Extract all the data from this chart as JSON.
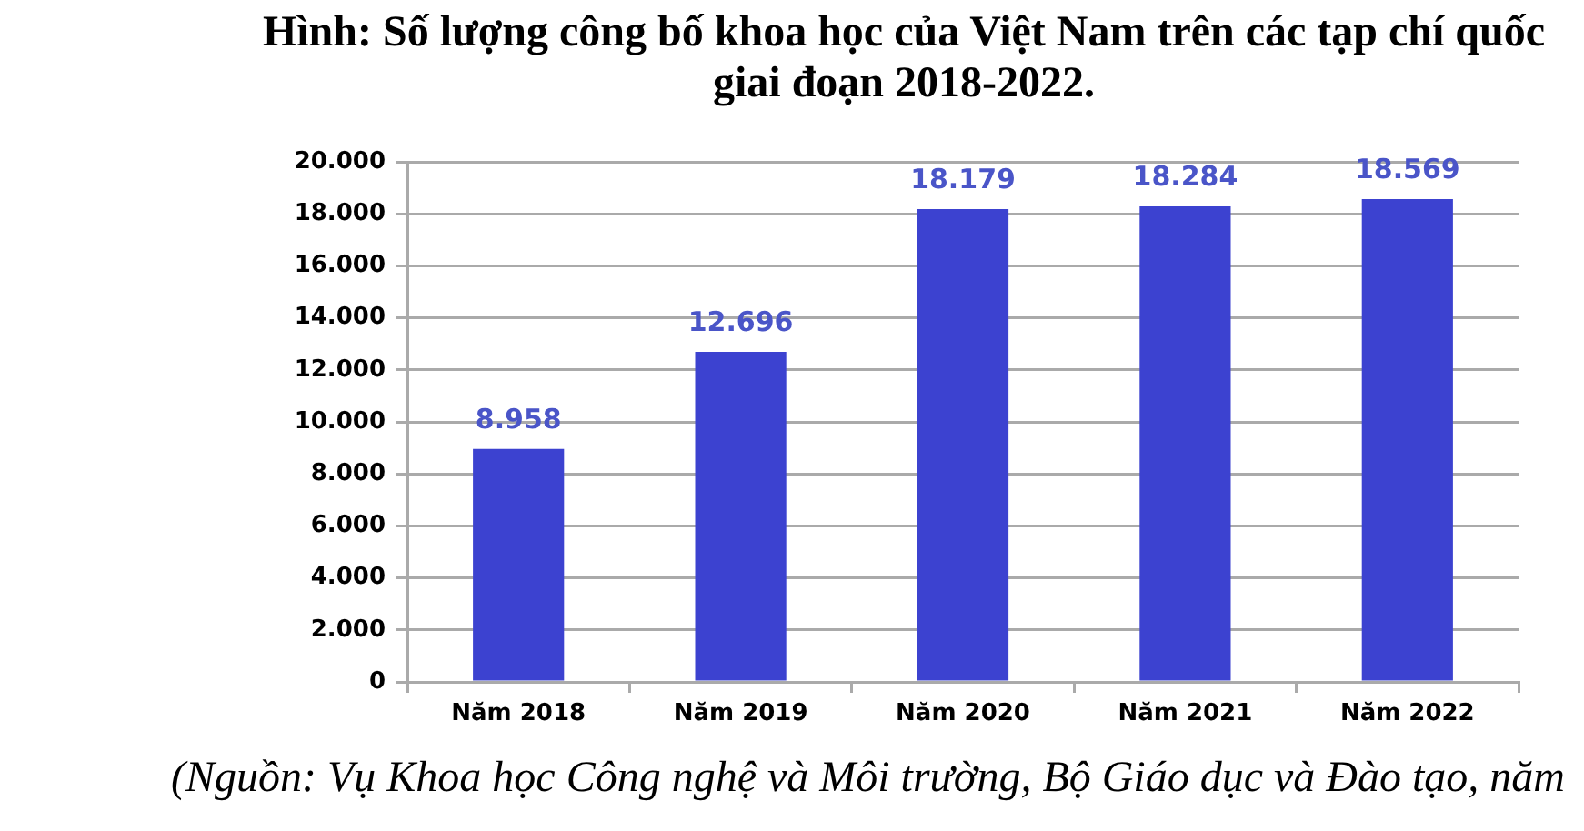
{
  "chart_data": {
    "type": "bar",
    "title": "Hình: Số lượng công bố khoa học của Việt Nam trên các tạp chí quốc giai đoạn 2018-2022.",
    "categories": [
      "Năm 2018",
      "Năm 2019",
      "Năm 2020",
      "Năm 2021",
      "Năm 2022"
    ],
    "values": [
      8958,
      12696,
      18179,
      18284,
      18569
    ],
    "value_labels": [
      "8.958",
      "12.696",
      "18.179",
      "18.284",
      "18.569"
    ],
    "color": "#3c42d0",
    "ylim": [
      0,
      20000
    ],
    "yticks": [
      0,
      {
        "value": 2000,
        "label": "2.000"
      },
      {
        "value": 4000,
        "label": "4.000"
      },
      {
        "value": 6000,
        "label": "6.000"
      },
      {
        "value": 8000,
        "label": "8.000"
      },
      {
        "value": 10000,
        "label": "10.000"
      },
      {
        "value": 12000,
        "label": "12.000"
      },
      {
        "value": 14000,
        "label": "14.000"
      },
      {
        "value": 16000,
        "label": "16.000"
      },
      {
        "value": 18000,
        "label": "18.000"
      },
      {
        "value": 20000,
        "label": "20.000"
      }
    ],
    "grid": "y",
    "annotations": [
      "(Nguồn: Vụ Khoa học Công nghệ và Môi trường, Bộ Giáo dục và Đào tạo, năm"
    ]
  }
}
